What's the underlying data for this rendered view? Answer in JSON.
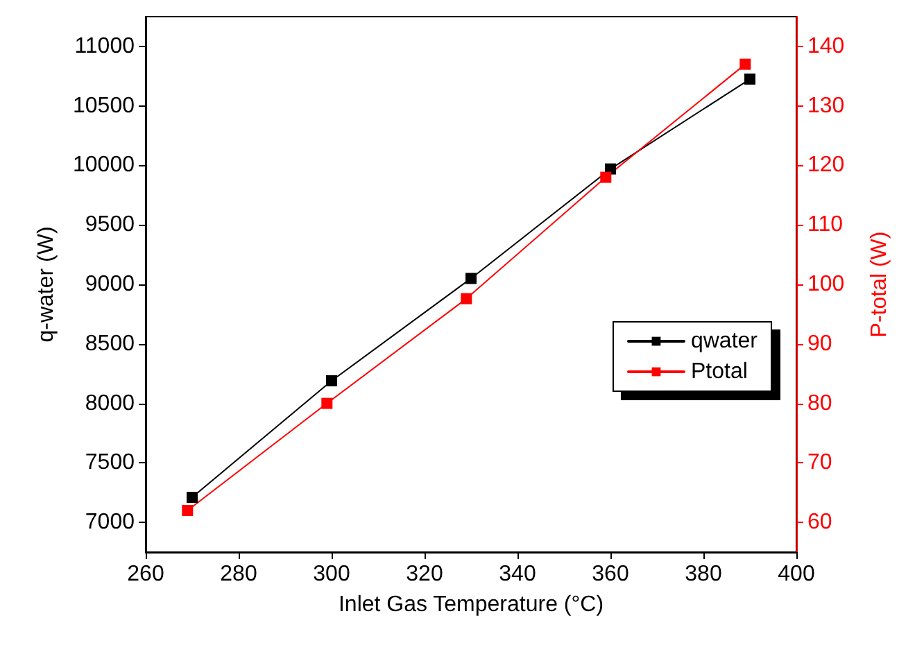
{
  "chart_data": {
    "type": "line",
    "xlabel": "Inlet Gas Temperature (°C)",
    "ylabel": "q-water (W)",
    "y2label": "P-total (W)",
    "xlim": [
      260,
      400
    ],
    "xticks": [
      260,
      280,
      300,
      320,
      340,
      360,
      380,
      400
    ],
    "ylim": [
      6750,
      11250
    ],
    "yticks": [
      7000,
      7500,
      8000,
      8500,
      9000,
      9500,
      10000,
      10500,
      11000
    ],
    "y2lim": [
      55,
      145
    ],
    "y2ticks": [
      60,
      70,
      80,
      90,
      100,
      110,
      120,
      130,
      140
    ],
    "marker": "square",
    "line_style": "solid",
    "grid": false,
    "legend": "right",
    "series": [
      {
        "name": "qwater",
        "color": "#000000",
        "x": [
          270,
          300,
          330,
          360,
          390
        ],
        "values": [
          7210,
          8190,
          9050,
          9970,
          10725
        ]
      },
      {
        "name": "Ptotal",
        "color": "#ff0000",
        "axis": "y2",
        "x": [
          269,
          299,
          329,
          359,
          389
        ],
        "values": [
          62,
          80,
          97.6,
          118,
          137
        ]
      }
    ]
  }
}
